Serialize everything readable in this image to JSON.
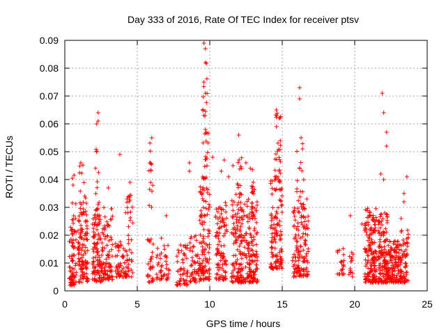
{
  "chart_data": {
    "type": "scatter",
    "title": "Day 333 of 2016, Rate Of TEC Index for receiver ptsv",
    "xlabel": "GPS time / hours",
    "ylabel": "ROTI / TECUs",
    "xlim": [
      0,
      25
    ],
    "ylim": [
      0,
      0.09
    ],
    "xticks": [
      0,
      5,
      10,
      15,
      20,
      25
    ],
    "yticks": [
      0,
      0.01,
      0.02,
      0.03,
      0.04,
      0.05,
      0.06,
      0.07,
      0.08,
      0.09
    ],
    "ytick_labels": [
      "0",
      "0.01",
      "0.02",
      "0.03",
      "0.04",
      "0.05",
      "0.06",
      "0.07",
      "0.08",
      "0.09"
    ],
    "xtick_labels": [
      "0",
      "5",
      "10",
      "15",
      "20",
      "25"
    ],
    "grid": true,
    "marker": "plus",
    "series": [
      {
        "color": "#ff0000",
        "clusters": [
          {
            "x": [
              0.3,
              0.8
            ],
            "ymin": 0.002,
            "ymax": 0.022,
            "n": 70
          },
          {
            "x": [
              0.4,
              0.8
            ],
            "ymin": 0.022,
            "ymax": 0.042,
            "n": 12
          },
          {
            "x": [
              0.9,
              1.6
            ],
            "ymin": 0.003,
            "ymax": 0.028,
            "n": 110
          },
          {
            "x": [
              1.0,
              1.5
            ],
            "ymin": 0.028,
            "ymax": 0.046,
            "n": 18
          },
          {
            "x": [
              1.9,
              2.6
            ],
            "ymin": 0.003,
            "ymax": 0.028,
            "n": 110
          },
          {
            "x": [
              2.1,
              2.4
            ],
            "ymin": 0.028,
            "ymax": 0.052,
            "n": 14
          },
          {
            "x": [
              2.6,
              3.3
            ],
            "ymin": 0.004,
            "ymax": 0.03,
            "n": 80
          },
          {
            "x": [
              3.5,
              4.2
            ],
            "ymin": 0.005,
            "ymax": 0.018,
            "n": 55
          },
          {
            "x": [
              4.2,
              4.7
            ],
            "ymin": 0.005,
            "ymax": 0.035,
            "n": 45
          },
          {
            "x": [
              5.7,
              6.1
            ],
            "ymin": 0.003,
            "ymax": 0.02,
            "n": 30
          },
          {
            "x": [
              5.8,
              6.1
            ],
            "ymin": 0.03,
            "ymax": 0.054,
            "n": 14
          },
          {
            "x": [
              6.3,
              7.2
            ],
            "ymin": 0.004,
            "ymax": 0.02,
            "n": 45
          },
          {
            "x": [
              7.7,
              8.5
            ],
            "ymin": 0.002,
            "ymax": 0.017,
            "n": 55
          },
          {
            "x": [
              8.6,
              9.3
            ],
            "ymin": 0.003,
            "ymax": 0.02,
            "n": 50
          },
          {
            "x": [
              9.3,
              10.0
            ],
            "ymin": 0.004,
            "ymax": 0.04,
            "n": 110
          },
          {
            "x": [
              9.5,
              9.9
            ],
            "ymin": 0.04,
            "ymax": 0.088,
            "n": 30
          },
          {
            "x": [
              10.4,
              11.2
            ],
            "ymin": 0.004,
            "ymax": 0.032,
            "n": 100
          },
          {
            "x": [
              11.5,
              12.5
            ],
            "ymin": 0.003,
            "ymax": 0.034,
            "n": 150
          },
          {
            "x": [
              11.8,
              12.3
            ],
            "ymin": 0.034,
            "ymax": 0.048,
            "n": 14
          },
          {
            "x": [
              12.5,
              13.3
            ],
            "ymin": 0.003,
            "ymax": 0.033,
            "n": 130
          },
          {
            "x": [
              12.8,
              13.1
            ],
            "ymin": 0.033,
            "ymax": 0.045,
            "n": 10
          },
          {
            "x": [
              14.2,
              15.0
            ],
            "ymin": 0.008,
            "ymax": 0.04,
            "n": 120
          },
          {
            "x": [
              14.5,
              14.9
            ],
            "ymin": 0.04,
            "ymax": 0.064,
            "n": 28
          },
          {
            "x": [
              15.7,
              16.8
            ],
            "ymin": 0.005,
            "ymax": 0.03,
            "n": 130
          },
          {
            "x": [
              16.0,
              16.5
            ],
            "ymin": 0.03,
            "ymax": 0.056,
            "n": 18
          },
          {
            "x": [
              18.8,
              19.3
            ],
            "ymin": 0.006,
            "ymax": 0.016,
            "n": 22
          },
          {
            "x": [
              19.6,
              19.9
            ],
            "ymin": 0.005,
            "ymax": 0.016,
            "n": 14
          },
          {
            "x": [
              20.7,
              21.5
            ],
            "ymin": 0.003,
            "ymax": 0.03,
            "n": 170
          },
          {
            "x": [
              21.6,
              22.3
            ],
            "ymin": 0.003,
            "ymax": 0.028,
            "n": 150
          },
          {
            "x": [
              22.3,
              23.2
            ],
            "ymin": 0.003,
            "ymax": 0.018,
            "n": 140
          },
          {
            "x": [
              23.2,
              23.7
            ],
            "ymin": 0.003,
            "ymax": 0.022,
            "n": 60
          }
        ],
        "points": [
          [
            1.1,
            0.046
          ],
          [
            2.3,
            0.064
          ],
          [
            2.3,
            0.061
          ],
          [
            2.2,
            0.06
          ],
          [
            3.0,
            0.037
          ],
          [
            3.8,
            0.049
          ],
          [
            4.5,
            0.039
          ],
          [
            6.0,
            0.055
          ],
          [
            5.9,
            0.046
          ],
          [
            7.0,
            0.027
          ],
          [
            8.6,
            0.046
          ],
          [
            8.6,
            0.043
          ],
          [
            9.6,
            0.089
          ],
          [
            9.7,
            0.087
          ],
          [
            9.7,
            0.082
          ],
          [
            9.7,
            0.071
          ],
          [
            9.6,
            0.063
          ],
          [
            9.7,
            0.058
          ],
          [
            10.2,
            0.048
          ],
          [
            10.8,
            0.043
          ],
          [
            11.3,
            0.041
          ],
          [
            11.6,
            0.045
          ],
          [
            12.0,
            0.056
          ],
          [
            12.5,
            0.046
          ],
          [
            12.8,
            0.044
          ],
          [
            14.6,
            0.065
          ],
          [
            14.8,
            0.062
          ],
          [
            16.2,
            0.073
          ],
          [
            16.2,
            0.069
          ],
          [
            16.3,
            0.055
          ],
          [
            16.4,
            0.051
          ],
          [
            21.9,
            0.071
          ],
          [
            22.0,
            0.064
          ],
          [
            22.2,
            0.057
          ],
          [
            22.2,
            0.052
          ],
          [
            21.8,
            0.042
          ],
          [
            22.0,
            0.04
          ],
          [
            20.5,
            0.024
          ],
          [
            19.7,
            0.027
          ],
          [
            23.6,
            0.041
          ],
          [
            23.4,
            0.035
          ],
          [
            23.4,
            0.032
          ],
          [
            23.2,
            0.026
          ],
          [
            16.2,
            0.044
          ],
          [
            16.7,
            0.033
          ],
          [
            4.3,
            0.033
          ],
          [
            11.0,
            0.047
          ],
          [
            13.0,
            0.039
          ],
          [
            9.6,
            0.075
          ],
          [
            14.6,
            0.059
          ]
        ]
      }
    ]
  }
}
